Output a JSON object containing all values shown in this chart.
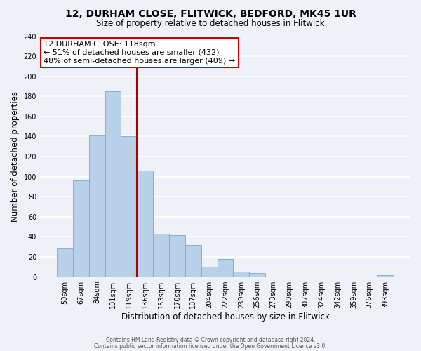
{
  "title": "12, DURHAM CLOSE, FLITWICK, BEDFORD, MK45 1UR",
  "subtitle": "Size of property relative to detached houses in Flitwick",
  "xlabel": "Distribution of detached houses by size in Flitwick",
  "ylabel": "Number of detached properties",
  "bar_labels": [
    "50sqm",
    "67sqm",
    "84sqm",
    "101sqm",
    "119sqm",
    "136sqm",
    "153sqm",
    "170sqm",
    "187sqm",
    "204sqm",
    "222sqm",
    "239sqm",
    "256sqm",
    "273sqm",
    "290sqm",
    "307sqm",
    "324sqm",
    "342sqm",
    "359sqm",
    "376sqm",
    "393sqm"
  ],
  "bar_values": [
    29,
    96,
    141,
    185,
    140,
    106,
    43,
    42,
    32,
    10,
    18,
    5,
    4,
    0,
    0,
    0,
    0,
    0,
    0,
    0,
    2
  ],
  "bar_color": "#b8d0e8",
  "bar_edge_color": "#7aaacf",
  "vline_index": 4,
  "vline_color": "#aa0000",
  "ylim": [
    0,
    240
  ],
  "yticks": [
    0,
    20,
    40,
    60,
    80,
    100,
    120,
    140,
    160,
    180,
    200,
    220,
    240
  ],
  "annotation_text": "12 DURHAM CLOSE: 118sqm\n← 51% of detached houses are smaller (432)\n48% of semi-detached houses are larger (409) →",
  "annotation_box_color": "#ffffff",
  "annotation_box_edge": "#cc0000",
  "footer_line1": "Contains HM Land Registry data © Crown copyright and database right 2024.",
  "footer_line2": "Contains public sector information licensed under the Open Government Licence v3.0.",
  "background_color": "#eef2f8",
  "grid_color": "#ffffff"
}
